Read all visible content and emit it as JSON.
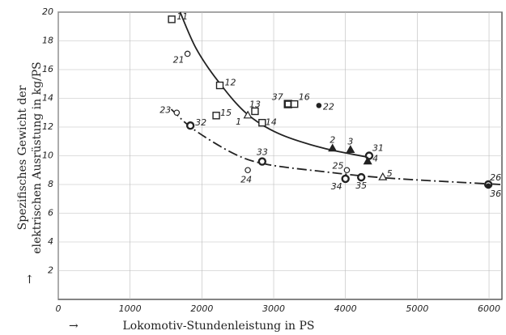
{
  "chart_data": {
    "type": "scatter",
    "x_label": "Lokomotiv-Stundenleistung in PS",
    "y_label": [
      "Spezifisches Gewicht der",
      "elektrischen Ausrüstung in kg/PS"
    ],
    "xlim": [
      0,
      6180
    ],
    "ylim": [
      0,
      20
    ],
    "xticks": [
      0,
      1000,
      2000,
      3000,
      4000,
      5000,
      6000
    ],
    "yticks": [
      2,
      4,
      6,
      8,
      10,
      12,
      14,
      16,
      18,
      20
    ],
    "grid": true,
    "color": "#222222",
    "points": [
      {
        "label": "11",
        "marker": "square",
        "x": 1580,
        "y": 19.5
      },
      {
        "label": "21",
        "marker": "circle",
        "x": 1800,
        "y": 17.1
      },
      {
        "label": "12",
        "marker": "square",
        "x": 2250,
        "y": 14.9
      },
      {
        "label": "15",
        "marker": "square",
        "x": 2200,
        "y": 12.8
      },
      {
        "label": "13",
        "marker": "square",
        "x": 2740,
        "y": 13.1
      },
      {
        "label": "1",
        "marker": "triangle-open",
        "x": 2640,
        "y": 12.8
      },
      {
        "label": "14",
        "marker": "square",
        "x": 2840,
        "y": 12.3
      },
      {
        "label": "37",
        "marker": "square-bold",
        "x": 3200,
        "y": 13.6
      },
      {
        "label": "16",
        "marker": "square",
        "x": 3290,
        "y": 13.6
      },
      {
        "label": "22",
        "marker": "dot",
        "x": 3630,
        "y": 13.5
      },
      {
        "label": "23",
        "marker": "circle",
        "x": 1650,
        "y": 13.0
      },
      {
        "label": "32",
        "marker": "circle-bold",
        "x": 1840,
        "y": 12.1
      },
      {
        "label": "2",
        "marker": "triangle",
        "x": 3820,
        "y": 10.5
      },
      {
        "label": "3",
        "marker": "triangle",
        "x": 4070,
        "y": 10.4
      },
      {
        "label": "31",
        "marker": "circle-bold",
        "x": 4330,
        "y": 10.0
      },
      {
        "label": "4",
        "marker": "triangle",
        "x": 4310,
        "y": 9.6
      },
      {
        "label": "33",
        "marker": "circle-bold",
        "x": 2840,
        "y": 9.6
      },
      {
        "label": "24",
        "marker": "circle",
        "x": 2640,
        "y": 9.0
      },
      {
        "label": "25",
        "marker": "circle",
        "x": 4020,
        "y": 9.0
      },
      {
        "label": "34",
        "marker": "circle-bold",
        "x": 4000,
        "y": 8.4
      },
      {
        "label": "35",
        "marker": "circle-bold",
        "x": 4220,
        "y": 8.5
      },
      {
        "label": "5",
        "marker": "triangle-open",
        "x": 4520,
        "y": 8.5
      },
      {
        "label": "26",
        "marker": "circle-bold",
        "x": 5990,
        "y": 8.0
      },
      {
        "label": "36",
        "marker": "dot",
        "x": 5990,
        "y": 7.9
      }
    ],
    "curves": [
      {
        "style": "solid",
        "x": [
          1697,
          1921,
          2225,
          2618,
          3067,
          3685,
          4360
        ],
        "y": [
          20,
          17.46,
          15.2,
          12.96,
          11.55,
          10.54,
          9.86
        ]
      },
      {
        "style": "dash-dot",
        "x": [
          1573,
          1888,
          2449,
          2899,
          3685,
          4584,
          6157
        ],
        "y": [
          13.24,
          11.83,
          10.14,
          9.41,
          8.9,
          8.45,
          8.0
        ]
      }
    ]
  }
}
